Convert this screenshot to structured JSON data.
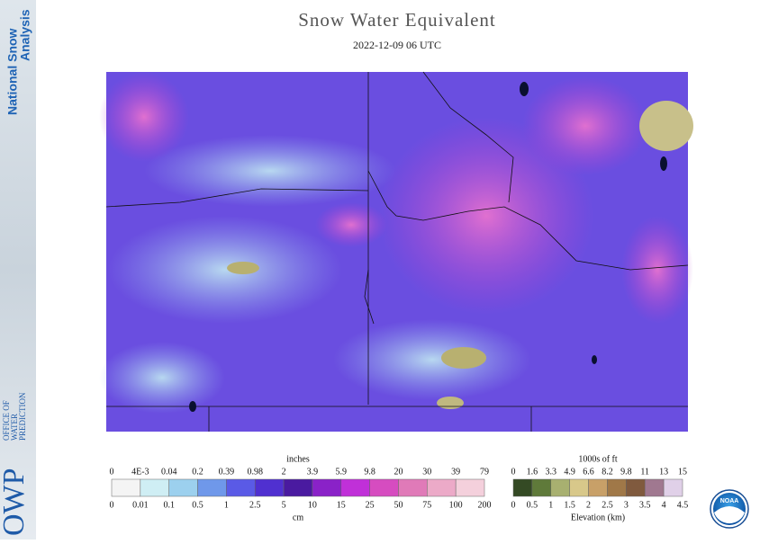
{
  "sidebar": {
    "product": [
      "National Snow",
      "Analysis"
    ],
    "logo": "OWP",
    "office": [
      "OFFICE OF",
      "WATER",
      "PREDICTION"
    ]
  },
  "header": {
    "title": "Snow Water Equivalent",
    "subtitle": "2022-12-09 06 UTC"
  },
  "swe_legend": {
    "top_units": "inches",
    "top_labels": [
      "0",
      "4E-3",
      "0.04",
      "0.2",
      "0.39",
      "0.98",
      "2",
      "3.9",
      "5.9",
      "9.8",
      "20",
      "30",
      "39",
      "79"
    ],
    "bottom_labels": [
      "0",
      "0.01",
      "0.1",
      "0.5",
      "1",
      "2.5",
      "5",
      "10",
      "15",
      "25",
      "50",
      "75",
      "100",
      "200"
    ],
    "bottom_units": "cm"
  },
  "elevation_legend": {
    "top_units": "1000s of ft",
    "top_labels": [
      "0",
      "1.6",
      "3.3",
      "4.9",
      "6.6",
      "8.2",
      "9.8",
      "11",
      "13",
      "15"
    ],
    "bottom_labels": [
      "0",
      "0.5",
      "1",
      "1.5",
      "2",
      "2.5",
      "3",
      "3.5",
      "4",
      "4.5"
    ],
    "bottom_units": "Elevation (km)"
  },
  "badge": "NOAA"
}
